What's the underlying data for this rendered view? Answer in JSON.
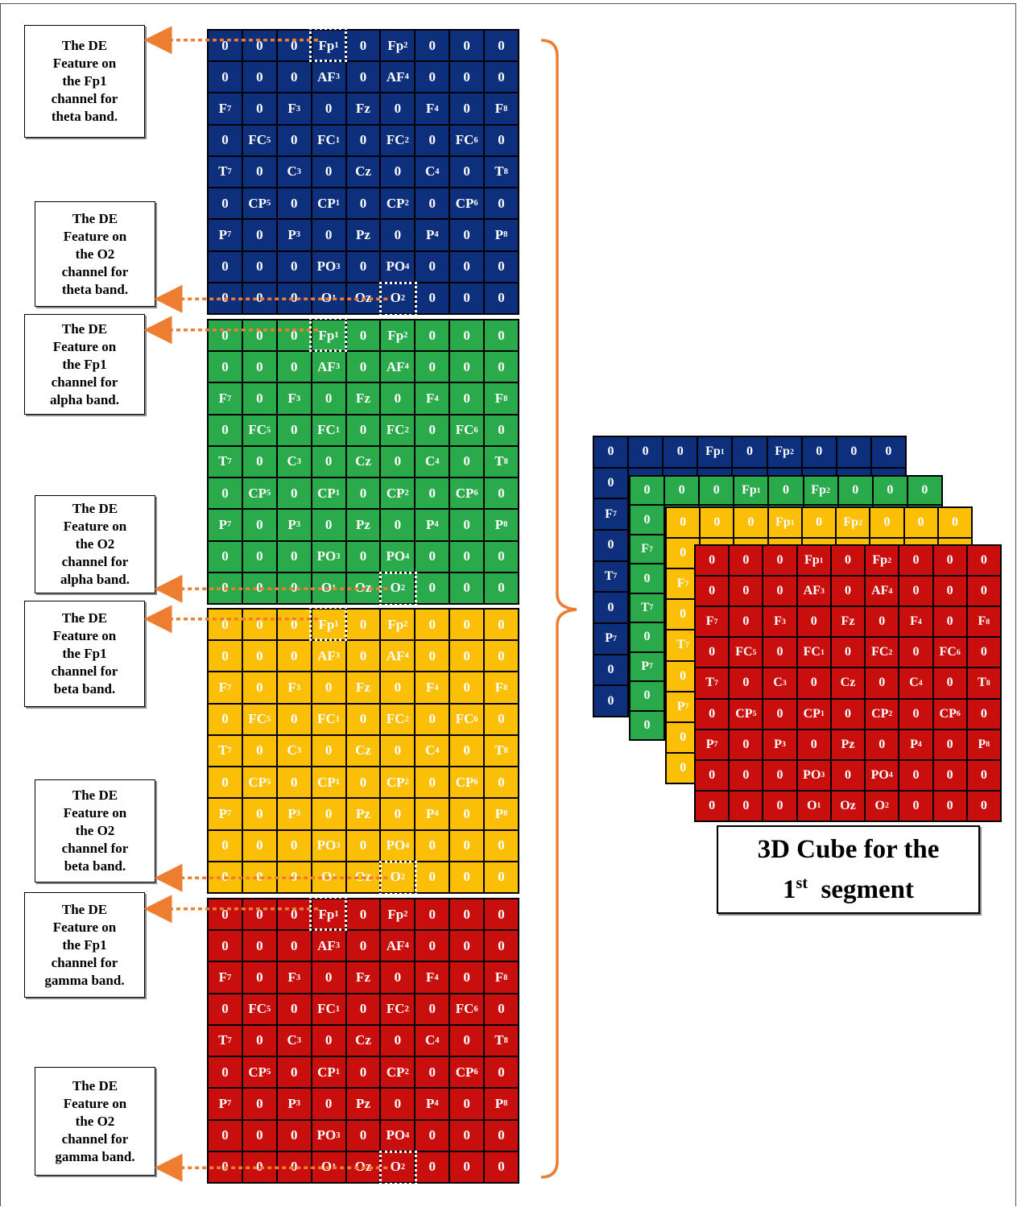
{
  "bands": [
    {
      "name": "theta",
      "color": "#0d2f7c"
    },
    {
      "name": "alpha",
      "color": "#2aaa4a"
    },
    {
      "name": "beta",
      "color": "#fbbf07"
    },
    {
      "name": "gamma",
      "color": "#c80f0e"
    }
  ],
  "grid_cells": [
    [
      "0",
      "0",
      "0",
      "Fp|1",
      "0",
      "Fp|2",
      "0",
      "0",
      "0"
    ],
    [
      "0",
      "0",
      "0",
      "AF|3",
      "0",
      "AF|4",
      "0",
      "0",
      "0"
    ],
    [
      "F|7",
      "0",
      "F|3",
      "0",
      "Fz",
      "0",
      "F|4",
      "0",
      "F|8"
    ],
    [
      "0",
      "FC|5",
      "0",
      "FC|1",
      "0",
      "FC|2",
      "0",
      "FC|6",
      "0"
    ],
    [
      "T|7",
      "0",
      "C|3",
      "0",
      "Cz",
      "0",
      "C|4",
      "0",
      "T|8"
    ],
    [
      "0",
      "CP|5",
      "0",
      "CP|1",
      "0",
      "CP|2",
      "0",
      "CP|6",
      "0"
    ],
    [
      "P|7",
      "0",
      "P|3",
      "0",
      "Pz",
      "0",
      "P|4",
      "0",
      "P|8"
    ],
    [
      "0",
      "0",
      "0",
      "PO|3",
      "0",
      "PO|4",
      "0",
      "0",
      "0"
    ],
    [
      "0",
      "0",
      "0",
      "O|1",
      "Oz",
      "O|2",
      "0",
      "0",
      "0"
    ]
  ],
  "labels": [
    {
      "channel": "Fp1",
      "band": "theta",
      "text": "The DE\nFeature on\nthe Fp1\nchannel for\ntheta band."
    },
    {
      "channel": "O2",
      "band": "theta",
      "text": "The DE\nFeature on\nthe O2\nchannel for\ntheta band."
    },
    {
      "channel": "Fp1",
      "band": "alpha",
      "text": "The DE\nFeature on\nthe Fp1\nchannel for\nalpha band."
    },
    {
      "channel": "O2",
      "band": "alpha",
      "text": "The DE\nFeature on\nthe O2\nchannel for\nalpha band."
    },
    {
      "channel": "Fp1",
      "band": "beta",
      "text": "The DE\nFeature on\nthe Fp1\nchannel for\nbeta band."
    },
    {
      "channel": "O2",
      "band": "beta",
      "text": "The DE\nFeature on\nthe O2\nchannel for\nbeta band."
    },
    {
      "channel": "Fp1",
      "band": "gamma",
      "text": "The DE\nFeature on\nthe Fp1\nchannel for\ngamma band."
    },
    {
      "channel": "O2",
      "band": "gamma",
      "text": "The DE\nFeature on\nthe O2\nchannel for\ngamma band."
    }
  ],
  "caption": {
    "line1": "3D Cube for the",
    "line2_pre": "1",
    "line2_sup": "st",
    "line2_post": "  segment"
  },
  "accent_color": "#ed7d31"
}
